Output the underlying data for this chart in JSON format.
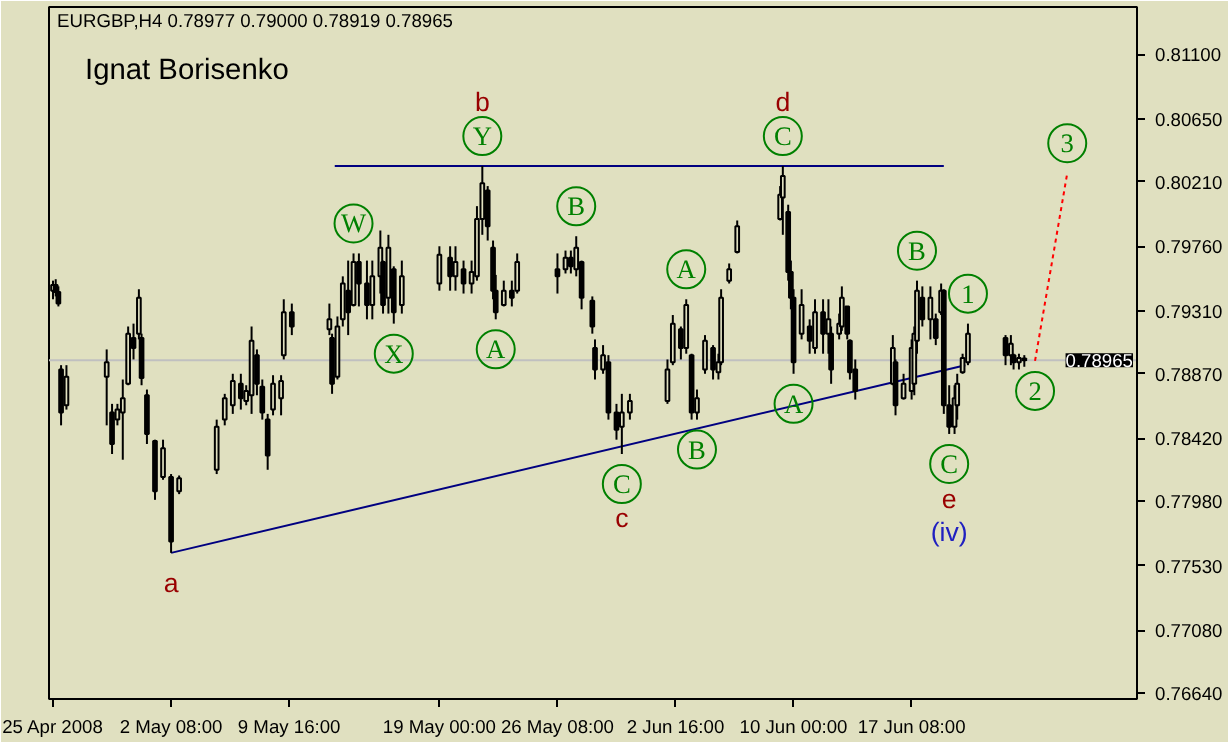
{
  "chart_data": {
    "type": "candlestick",
    "title": "EURGBP,H4  0.78977 0.79000 0.78919 0.78965",
    "xlim": [
      "2008-04-24T18:00",
      "2008-07-01T08:00"
    ],
    "ylim": [
      0.766,
      0.8143
    ],
    "xticks": [
      {
        "value": "2008-04-25T00:00",
        "label": "25 Apr 2008"
      },
      {
        "value": "2008-05-02T08:00",
        "label": "2 May 08:00"
      },
      {
        "value": "2008-05-09T16:00",
        "label": "9 May 16:00"
      },
      {
        "value": "2008-05-19T00:00",
        "label": "19 May 00:00"
      },
      {
        "value": "2008-05-26T08:00",
        "label": "26 May 08:00"
      },
      {
        "value": "2008-06-02T16:00",
        "label": "2 Jun 16:00"
      },
      {
        "value": "2008-06-10T00:00",
        "label": "10 Jun 00:00"
      },
      {
        "value": "2008-06-17T08:00",
        "label": "17 Jun 08:00"
      }
    ],
    "yticks": [
      {
        "value": 0.811,
        "label": "0.81100"
      },
      {
        "value": 0.8065,
        "label": "0.80650"
      },
      {
        "value": 0.8021,
        "label": "0.80210"
      },
      {
        "value": 0.7976,
        "label": "0.79760"
      },
      {
        "value": 0.7931,
        "label": "0.79310"
      },
      {
        "value": 0.7887,
        "label": "0.78870"
      },
      {
        "value": 0.7842,
        "label": "0.78420"
      },
      {
        "value": 0.7798,
        "label": "0.77980"
      },
      {
        "value": 0.7753,
        "label": "0.77530"
      },
      {
        "value": 0.7708,
        "label": "0.77080"
      },
      {
        "value": 0.7664,
        "label": "0.76640"
      }
    ],
    "grid": false,
    "series": [
      {
        "color": "#000000",
        "x": [
          "2008-04-25T00:00",
          "2008-04-25T04:00",
          "2008-04-25T08:00",
          "2008-04-25T12:00",
          "2008-04-25T20:00",
          "2008-04-28T08:00",
          "2008-04-28T16:00",
          "2008-04-29T00:00",
          "2008-04-29T08:00",
          "2008-04-29T16:00",
          "2008-04-30T00:00",
          "2008-04-30T08:00",
          "2008-04-30T12:00",
          "2008-04-30T20:00",
          "2008-05-01T08:00",
          "2008-05-01T20:00",
          "2008-05-02T08:00",
          "2008-05-02T20:00",
          "2008-05-05T04:00",
          "2008-05-05T16:00",
          "2008-05-06T04:00",
          "2008-05-06T16:00",
          "2008-05-07T00:00",
          "2008-05-07T08:00",
          "2008-05-07T16:00",
          "2008-05-08T00:00",
          "2008-05-08T08:00",
          "2008-05-08T16:00",
          "2008-05-09T04:00",
          "2008-05-09T08:00",
          "2008-05-09T20:00",
          "2008-05-12T04:00",
          "2008-05-12T08:00",
          "2008-05-12T16:00",
          "2008-05-13T00:00",
          "2008-05-13T08:00",
          "2008-05-13T16:00",
          "2008-05-14T00:00",
          "2008-05-14T12:00",
          "2008-05-14T20:00",
          "2008-05-15T08:00",
          "2008-05-15T12:00",
          "2008-05-15T20:00",
          "2008-05-16T04:00",
          "2008-05-16T16:00",
          "2008-05-19T00:00",
          "2008-05-19T16:00",
          "2008-05-20T00:00",
          "2008-05-20T12:00",
          "2008-05-21T00:00",
          "2008-05-21T08:00",
          "2008-05-21T16:00",
          "2008-05-22T00:00",
          "2008-05-22T08:00",
          "2008-05-22T12:00",
          "2008-05-23T00:00",
          "2008-05-23T12:00",
          "2008-05-23T20:00",
          "2008-05-26T08:00",
          "2008-05-26T20:00",
          "2008-05-27T04:00",
          "2008-05-27T12:00",
          "2008-05-27T20:00",
          "2008-05-28T12:00",
          "2008-05-28T16:00",
          "2008-05-29T04:00",
          "2008-05-29T12:00",
          "2008-05-30T00:00",
          "2008-05-30T08:00",
          "2008-05-30T20:00",
          "2008-06-02T04:00",
          "2008-06-02T12:00",
          "2008-06-03T00:00",
          "2008-06-03T08:00",
          "2008-06-03T16:00",
          "2008-06-04T00:00",
          "2008-06-04T12:00",
          "2008-06-05T00:00",
          "2008-06-05T08:00",
          "2008-06-05T12:00",
          "2008-06-06T00:00",
          "2008-06-06T12:00",
          "2008-06-09T04:00",
          "2008-06-09T08:00",
          "2008-06-09T16:00",
          "2008-06-09T20:00",
          "2008-06-10T00:00",
          "2008-06-10T12:00",
          "2008-06-11T00:00",
          "2008-06-11T08:00",
          "2008-06-11T20:00",
          "2008-06-12T04:00",
          "2008-06-12T08:00",
          "2008-06-12T20:00",
          "2008-06-13T00:00",
          "2008-06-13T08:00",
          "2008-06-13T12:00",
          "2008-06-13T20:00",
          "2008-06-16T04:00",
          "2008-06-16T08:00",
          "2008-06-16T20:00",
          "2008-06-17T08:00",
          "2008-06-17T12:00",
          "2008-06-17T16:00",
          "2008-06-18T00:00",
          "2008-06-18T12:00",
          "2008-06-18T20:00",
          "2008-06-19T04:00",
          "2008-06-19T08:00",
          "2008-06-19T16:00",
          "2008-06-20T00:00",
          "2008-06-20T04:00",
          "2008-06-20T12:00",
          "2008-06-20T20:00",
          "2008-06-23T04:00",
          "2008-06-23T12:00",
          "2008-06-23T16:00",
          "2008-06-24T00:00",
          "2008-06-24T08:00"
        ],
        "ohlc": [
          [
            0.7945,
            0.7952,
            0.7939,
            0.7949
          ],
          [
            0.7949,
            0.7953,
            0.7941,
            0.7944
          ],
          [
            0.7944,
            0.7948,
            0.7934,
            0.7936
          ],
          [
            0.789,
            0.7893,
            0.7851,
            0.786
          ],
          [
            0.7865,
            0.7893,
            0.7862,
            0.7885
          ],
          [
            0.7885,
            0.7904,
            0.7851,
            0.7895
          ],
          [
            0.786,
            0.7866,
            0.7831,
            0.7838
          ],
          [
            0.7855,
            0.7866,
            0.7851,
            0.7862
          ],
          [
            0.786,
            0.7883,
            0.7827,
            0.787
          ],
          [
            0.788,
            0.792,
            0.7879,
            0.7915
          ],
          [
            0.7912,
            0.7922,
            0.7897,
            0.7905
          ],
          [
            0.7915,
            0.7946,
            0.7911,
            0.794
          ],
          [
            0.7912,
            0.7915,
            0.7879,
            0.7884
          ],
          [
            0.7872,
            0.7876,
            0.7838,
            0.7845
          ],
          [
            0.784,
            0.7841,
            0.7799,
            0.7805
          ],
          [
            0.7815,
            0.7841,
            0.7813,
            0.7835
          ],
          [
            0.7815,
            0.7817,
            0.7762,
            0.777
          ],
          [
            0.7805,
            0.7816,
            0.7803,
            0.7814
          ],
          [
            0.782,
            0.7855,
            0.7817,
            0.785
          ],
          [
            0.7855,
            0.7873,
            0.7851,
            0.787
          ],
          [
            0.7865,
            0.7887,
            0.7859,
            0.7882
          ],
          [
            0.788,
            0.7887,
            0.7862,
            0.787
          ],
          [
            0.7868,
            0.7879,
            0.7865,
            0.7875
          ],
          [
            0.7872,
            0.792,
            0.7859,
            0.791
          ],
          [
            0.79,
            0.7904,
            0.7872,
            0.788
          ],
          [
            0.7878,
            0.7883,
            0.7855,
            0.786
          ],
          [
            0.7855,
            0.7859,
            0.782,
            0.783
          ],
          [
            0.7862,
            0.7886,
            0.7858,
            0.788
          ],
          [
            0.787,
            0.7886,
            0.7858,
            0.7882
          ],
          [
            0.79,
            0.7939,
            0.7897,
            0.793
          ],
          [
            0.793,
            0.7936,
            0.7914,
            0.792
          ],
          [
            0.7918,
            0.7936,
            0.7914,
            0.7925
          ],
          [
            0.7912,
            0.7915,
            0.7873,
            0.788
          ],
          [
            0.7885,
            0.7927,
            0.7883,
            0.792
          ],
          [
            0.7925,
            0.7955,
            0.792,
            0.795
          ],
          [
            0.7945,
            0.7966,
            0.7914,
            0.793
          ],
          [
            0.7935,
            0.7971,
            0.7934,
            0.7965
          ],
          [
            0.7965,
            0.7971,
            0.7934,
            0.795
          ],
          [
            0.795,
            0.7966,
            0.7925,
            0.7935
          ],
          [
            0.7935,
            0.7966,
            0.7925,
            0.7955
          ],
          [
            0.7955,
            0.7987,
            0.7943,
            0.7975
          ],
          [
            0.7965,
            0.7966,
            0.7929,
            0.7935
          ],
          [
            0.794,
            0.7984,
            0.7929,
            0.7975
          ],
          [
            0.796,
            0.7962,
            0.7922,
            0.793
          ],
          [
            0.7935,
            0.7966,
            0.7929,
            0.7955
          ],
          [
            0.795,
            0.7976,
            0.7945,
            0.797
          ],
          [
            0.7968,
            0.7976,
            0.7945,
            0.7955
          ],
          [
            0.7955,
            0.7976,
            0.7945,
            0.7965
          ],
          [
            0.796,
            0.7966,
            0.7943,
            0.795
          ],
          [
            0.795,
            0.7966,
            0.7943,
            0.7958
          ],
          [
            0.7955,
            0.8004,
            0.7952,
            0.7995
          ],
          [
            0.7995,
            0.8032,
            0.7984,
            0.802
          ],
          [
            0.8015,
            0.8018,
            0.798,
            0.799
          ],
          [
            0.7975,
            0.798,
            0.7939,
            0.7945
          ],
          [
            0.7945,
            0.7956,
            0.7925,
            0.793
          ],
          [
            0.7935,
            0.7952,
            0.7934,
            0.7945
          ],
          [
            0.7945,
            0.7952,
            0.7934,
            0.794
          ],
          [
            0.7945,
            0.7971,
            0.7943,
            0.7965
          ],
          [
            0.796,
            0.7971,
            0.7943,
            0.7955
          ],
          [
            0.796,
            0.7973,
            0.7957,
            0.7968
          ],
          [
            0.7968,
            0.7973,
            0.7957,
            0.7962
          ],
          [
            0.796,
            0.7983,
            0.7955,
            0.7975
          ],
          [
            0.7965,
            0.7966,
            0.7932,
            0.794
          ],
          [
            0.7938,
            0.7941,
            0.7915,
            0.792
          ],
          [
            0.7905,
            0.7911,
            0.7883,
            0.789
          ],
          [
            0.789,
            0.7907,
            0.7887,
            0.79
          ],
          [
            0.7895,
            0.79,
            0.7855,
            0.786
          ],
          [
            0.786,
            0.7866,
            0.7841,
            0.7848
          ],
          [
            0.785,
            0.7873,
            0.7831,
            0.786
          ],
          [
            0.786,
            0.7873,
            0.7855,
            0.7868
          ],
          [
            0.7868,
            0.7897,
            0.7866,
            0.789
          ],
          [
            0.7895,
            0.7928,
            0.7893,
            0.7922
          ],
          [
            0.7918,
            0.792,
            0.7897,
            0.7905
          ],
          [
            0.7905,
            0.7939,
            0.7901,
            0.7935
          ],
          [
            0.79,
            0.7901,
            0.7855,
            0.786
          ],
          [
            0.786,
            0.7876,
            0.7855,
            0.787
          ],
          [
            0.789,
            0.7914,
            0.7887,
            0.791
          ],
          [
            0.7905,
            0.7907,
            0.7883,
            0.789
          ],
          [
            0.7888,
            0.7901,
            0.7883,
            0.7895
          ],
          [
            0.7895,
            0.7946,
            0.7893,
            0.794
          ],
          [
            0.7952,
            0.7964,
            0.795,
            0.796
          ],
          [
            0.7972,
            0.7994,
            0.7971,
            0.799
          ],
          [
            0.7995,
            0.8018,
            0.7994,
            0.8012
          ],
          [
            0.801,
            0.8032,
            0.7984,
            0.8025
          ],
          [
            0.8,
            0.8005,
            0.7952,
            0.7958
          ],
          [
            0.7958,
            0.7966,
            0.7932,
            0.794
          ],
          [
            0.794,
            0.7946,
            0.7887,
            0.7895
          ],
          [
            0.7915,
            0.7946,
            0.7911,
            0.7935
          ],
          [
            0.792,
            0.7925,
            0.7901,
            0.791
          ],
          [
            0.7905,
            0.7939,
            0.7901,
            0.793
          ],
          [
            0.793,
            0.7939,
            0.7901,
            0.7915
          ],
          [
            0.7915,
            0.7939,
            0.7901,
            0.7925
          ],
          [
            0.7915,
            0.792,
            0.788,
            0.789
          ],
          [
            0.7915,
            0.7929,
            0.7911,
            0.7922
          ],
          [
            0.792,
            0.7948,
            0.7917,
            0.794
          ],
          [
            0.7934,
            0.7934,
            0.7911,
            0.7915
          ],
          [
            0.791,
            0.7911,
            0.7883,
            0.7888
          ],
          [
            0.789,
            0.7897,
            0.7869,
            0.7875
          ],
          [
            0.788,
            0.7914,
            0.7879,
            0.7905
          ],
          [
            0.7895,
            0.7897,
            0.7858,
            0.7865
          ],
          [
            0.787,
            0.7887,
            0.7869,
            0.788
          ],
          [
            0.7875,
            0.7911,
            0.7869,
            0.7905
          ],
          [
            0.788,
            0.792,
            0.7872,
            0.7915
          ],
          [
            0.791,
            0.7952,
            0.7901,
            0.7945
          ],
          [
            0.794,
            0.7948,
            0.792,
            0.7925
          ],
          [
            0.7925,
            0.7948,
            0.7911,
            0.794
          ],
          [
            0.7925,
            0.7929,
            0.7907,
            0.7912
          ],
          [
            0.793,
            0.795,
            0.7928,
            0.7945
          ],
          [
            0.7945,
            0.7946,
            0.7859,
            0.7865
          ],
          [
            0.7865,
            0.7879,
            0.7845,
            0.785
          ],
          [
            0.785,
            0.7879,
            0.7845,
            0.787
          ],
          [
            0.7865,
            0.7887,
            0.7855,
            0.788
          ],
          [
            0.7888,
            0.7901,
            0.7887,
            0.7898
          ],
          [
            0.7895,
            0.7922,
            0.7893,
            0.7915
          ],
          [
            0.7912,
            0.7914,
            0.7893,
            0.79
          ],
          [
            0.79,
            0.7914,
            0.7893,
            0.7908
          ],
          [
            0.79,
            0.7901,
            0.789,
            0.7895
          ],
          [
            0.7895,
            0.7901,
            0.789,
            0.7898
          ],
          [
            0.78977,
            0.79,
            0.78919,
            0.78965
          ]
        ]
      },
      {
        "type": "line",
        "color": "#000080",
        "x": [
          "2008-05-12T12:00",
          "2008-06-19T08:00"
        ],
        "values": [
          0.8032,
          0.8032
        ]
      },
      {
        "type": "line",
        "color": "#000080",
        "x": [
          "2008-05-02T08:00",
          "2008-06-20T16:00"
        ],
        "values": [
          0.7762,
          0.7893
        ]
      },
      {
        "type": "line",
        "color": "#ff0000",
        "line_style": "dotted",
        "x": [
          "2008-06-25T00:00",
          "2008-06-27T00:00"
        ],
        "values": [
          0.7896,
          0.8027
        ]
      }
    ],
    "ref_lines": [
      {
        "axis": "y",
        "value": 0.78965,
        "label": "0.78965",
        "color": "#c0c0c0"
      }
    ],
    "annotations": [
      "Ignat Borisenko",
      {
        "text": "W",
        "x": "2008-05-13T16:00",
        "y": 0.7971
      },
      {
        "text": "X",
        "x": "2008-05-16T04:00",
        "y": 0.7922
      },
      {
        "text": "Y",
        "x": "2008-05-21T16:00",
        "y": 0.8032
      },
      {
        "text": "b",
        "x": "2008-05-21T16:00",
        "y": 0.8032
      },
      {
        "text": "A",
        "x": "2008-05-22T12:00",
        "y": 0.7925
      },
      {
        "text": "B",
        "x": "2008-05-27T12:00",
        "y": 0.7983
      },
      {
        "text": "C",
        "x": "2008-05-30T08:00",
        "y": 0.7831
      },
      {
        "text": "c",
        "x": "2008-05-30T08:00",
        "y": 0.7831
      },
      {
        "text": "A",
        "x": "2008-06-03T08:00",
        "y": 0.7939
      },
      {
        "text": "B",
        "x": "2008-06-04T00:00",
        "y": 0.7855
      },
      {
        "text": "C",
        "x": "2008-06-09T08:00",
        "y": 0.8032
      },
      {
        "text": "d",
        "x": "2008-06-09T08:00",
        "y": 0.8032
      },
      {
        "text": "A",
        "x": "2008-06-10T00:00",
        "y": 0.7887
      },
      {
        "text": "B",
        "x": "2008-06-17T16:00",
        "y": 0.7952
      },
      {
        "text": "C",
        "x": "2008-06-19T16:00",
        "y": 0.7845
      },
      {
        "text": "e",
        "x": "2008-06-19T16:00",
        "y": 0.7845
      },
      "(iv)",
      {
        "text": "1",
        "x": "2008-06-20T20:00",
        "y": 0.7922
      },
      {
        "text": "2",
        "x": "2008-06-25T00:00",
        "y": 0.7896
      },
      {
        "text": "3",
        "x": "2008-06-27T00:00",
        "y": 0.8027
      },
      {
        "text": "a",
        "x": "2008-05-02T08:00",
        "y": 0.7762
      }
    ]
  }
}
